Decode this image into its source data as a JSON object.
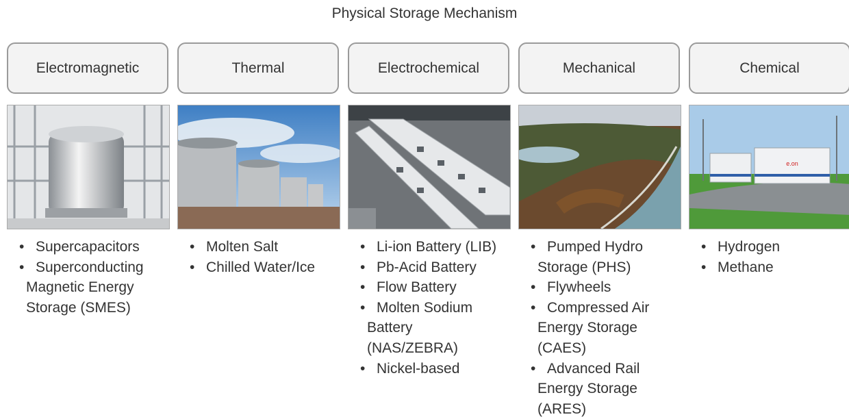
{
  "title": "Physical Storage Mechanism",
  "columns": [
    {
      "label": "Electromagnetic",
      "items": [
        "Supercapacitors",
        "Superconducting Magnetic Energy Storage (SMES)"
      ]
    },
    {
      "label": "Thermal",
      "items": [
        "Molten Salt",
        "Chilled Water/Ice"
      ]
    },
    {
      "label": "Electrochemical",
      "items": [
        "Li-ion Battery (LIB)",
        "Pb-Acid Battery",
        "Flow Battery",
        "Molten Sodium Battery (NAS/ZEBRA)",
        "Nickel-based"
      ]
    },
    {
      "label": "Mechanical",
      "items": [
        "Pumped Hydro Storage (PHS)",
        "Flywheels",
        "Compressed Air Energy Storage (CAES)",
        "Advanced Rail Energy Storage (ARES)"
      ]
    },
    {
      "label": "Chemical",
      "items": [
        "Hydrogen",
        "Methane"
      ]
    }
  ]
}
